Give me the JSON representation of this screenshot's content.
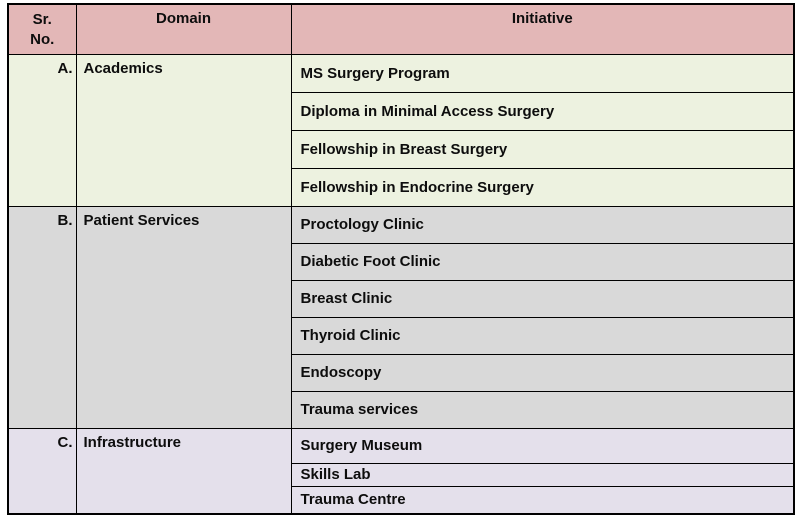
{
  "colors": {
    "page_bg": "#ffffff",
    "header_bg": "#e3b7b7",
    "section_a_bg": "#edf2e0",
    "section_b_bg": "#d9d9d9",
    "section_c_bg": "#e4e0eb",
    "border": "#000000",
    "text": "#0d0d0d"
  },
  "headers": {
    "sr_no": "Sr.\nNo.",
    "domain": "Domain",
    "initiative": "Initiative"
  },
  "sections": [
    {
      "sr": "A.",
      "domain": "Academics",
      "items": [
        "MS Surgery Program",
        "Diploma in Minimal Access Surgery",
        "Fellowship in Breast Surgery",
        "Fellowship in Endocrine Surgery"
      ]
    },
    {
      "sr": "B.",
      "domain": "Patient Services",
      "items": [
        "Proctology Clinic",
        "Diabetic Foot Clinic",
        "Breast Clinic",
        "Thyroid Clinic",
        "Endoscopy",
        "Trauma services"
      ]
    },
    {
      "sr": "C.",
      "domain": "Infrastructure",
      "items": [
        "Surgery Museum",
        "Skills Lab",
        "Trauma Centre"
      ]
    }
  ]
}
